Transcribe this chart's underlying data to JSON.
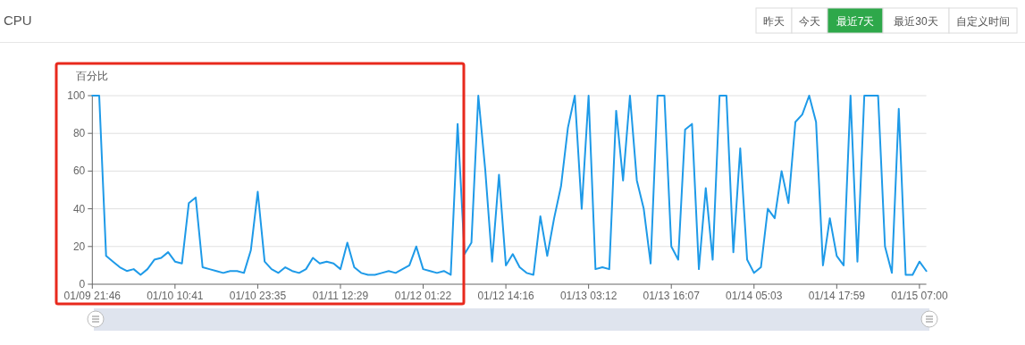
{
  "chart_data": {
    "type": "line",
    "title": "CPU",
    "ylabel": "百分比",
    "categories": [
      "01/09 21:46",
      null,
      null,
      null,
      null,
      null,
      null,
      null,
      null,
      null,
      null,
      null,
      "01/10 10:41",
      null,
      null,
      null,
      null,
      null,
      null,
      null,
      null,
      null,
      null,
      null,
      "01/10 23:35",
      null,
      null,
      null,
      null,
      null,
      null,
      null,
      null,
      null,
      null,
      null,
      "01/11 12:29",
      null,
      null,
      null,
      null,
      null,
      null,
      null,
      null,
      null,
      null,
      null,
      "01/12 01:22",
      null,
      null,
      null,
      null,
      null,
      null,
      null,
      null,
      null,
      null,
      null,
      "01/12 14:16",
      null,
      null,
      null,
      null,
      null,
      null,
      null,
      null,
      null,
      null,
      null,
      "01/13 03:12",
      null,
      null,
      null,
      null,
      null,
      null,
      null,
      null,
      null,
      null,
      null,
      "01/13 16:07",
      null,
      null,
      null,
      null,
      null,
      null,
      null,
      null,
      null,
      null,
      null,
      "01/14 05:03",
      null,
      null,
      null,
      null,
      null,
      null,
      null,
      null,
      null,
      null,
      null,
      "01/14 17:59",
      null,
      null,
      null,
      null,
      null,
      null,
      null,
      null,
      null,
      null,
      null,
      "01/15 07:00",
      null
    ],
    "series": [
      {
        "color": "#1e9ae8",
        "values": [
          100,
          100,
          15,
          12,
          9,
          7,
          8,
          5,
          8,
          13,
          14,
          17,
          12,
          11,
          43,
          46,
          9,
          8,
          7,
          6,
          7,
          7,
          6,
          18,
          49,
          12,
          8,
          6,
          9,
          7,
          6,
          8,
          14,
          11,
          12,
          11,
          8,
          22,
          9,
          6,
          5,
          5,
          6,
          7,
          6,
          8,
          10,
          20,
          8,
          7,
          6,
          7,
          5,
          85,
          16,
          22,
          100,
          61,
          12,
          58,
          10,
          16,
          9,
          6,
          5,
          36,
          15,
          35,
          52,
          83,
          100,
          40,
          100,
          8,
          9,
          8,
          92,
          55,
          100,
          55,
          40,
          11,
          100,
          100,
          20,
          13,
          82,
          85,
          8,
          51,
          13,
          100,
          100,
          17,
          72,
          13,
          6,
          9,
          40,
          35,
          60,
          43,
          86,
          90,
          100,
          86,
          10,
          35,
          15,
          10,
          100,
          12,
          100,
          100,
          100,
          20,
          6,
          93,
          5,
          5,
          12,
          7
        ]
      }
    ],
    "ylim": [
      0,
      100
    ],
    "yticks": [
      0,
      20,
      40,
      60,
      80,
      100
    ],
    "grid": "y",
    "marker": "none",
    "line_style": "solid",
    "annotations": [
      "昨天",
      "今天",
      "最近7天",
      "最近30天",
      "自定义时间"
    ]
  }
}
